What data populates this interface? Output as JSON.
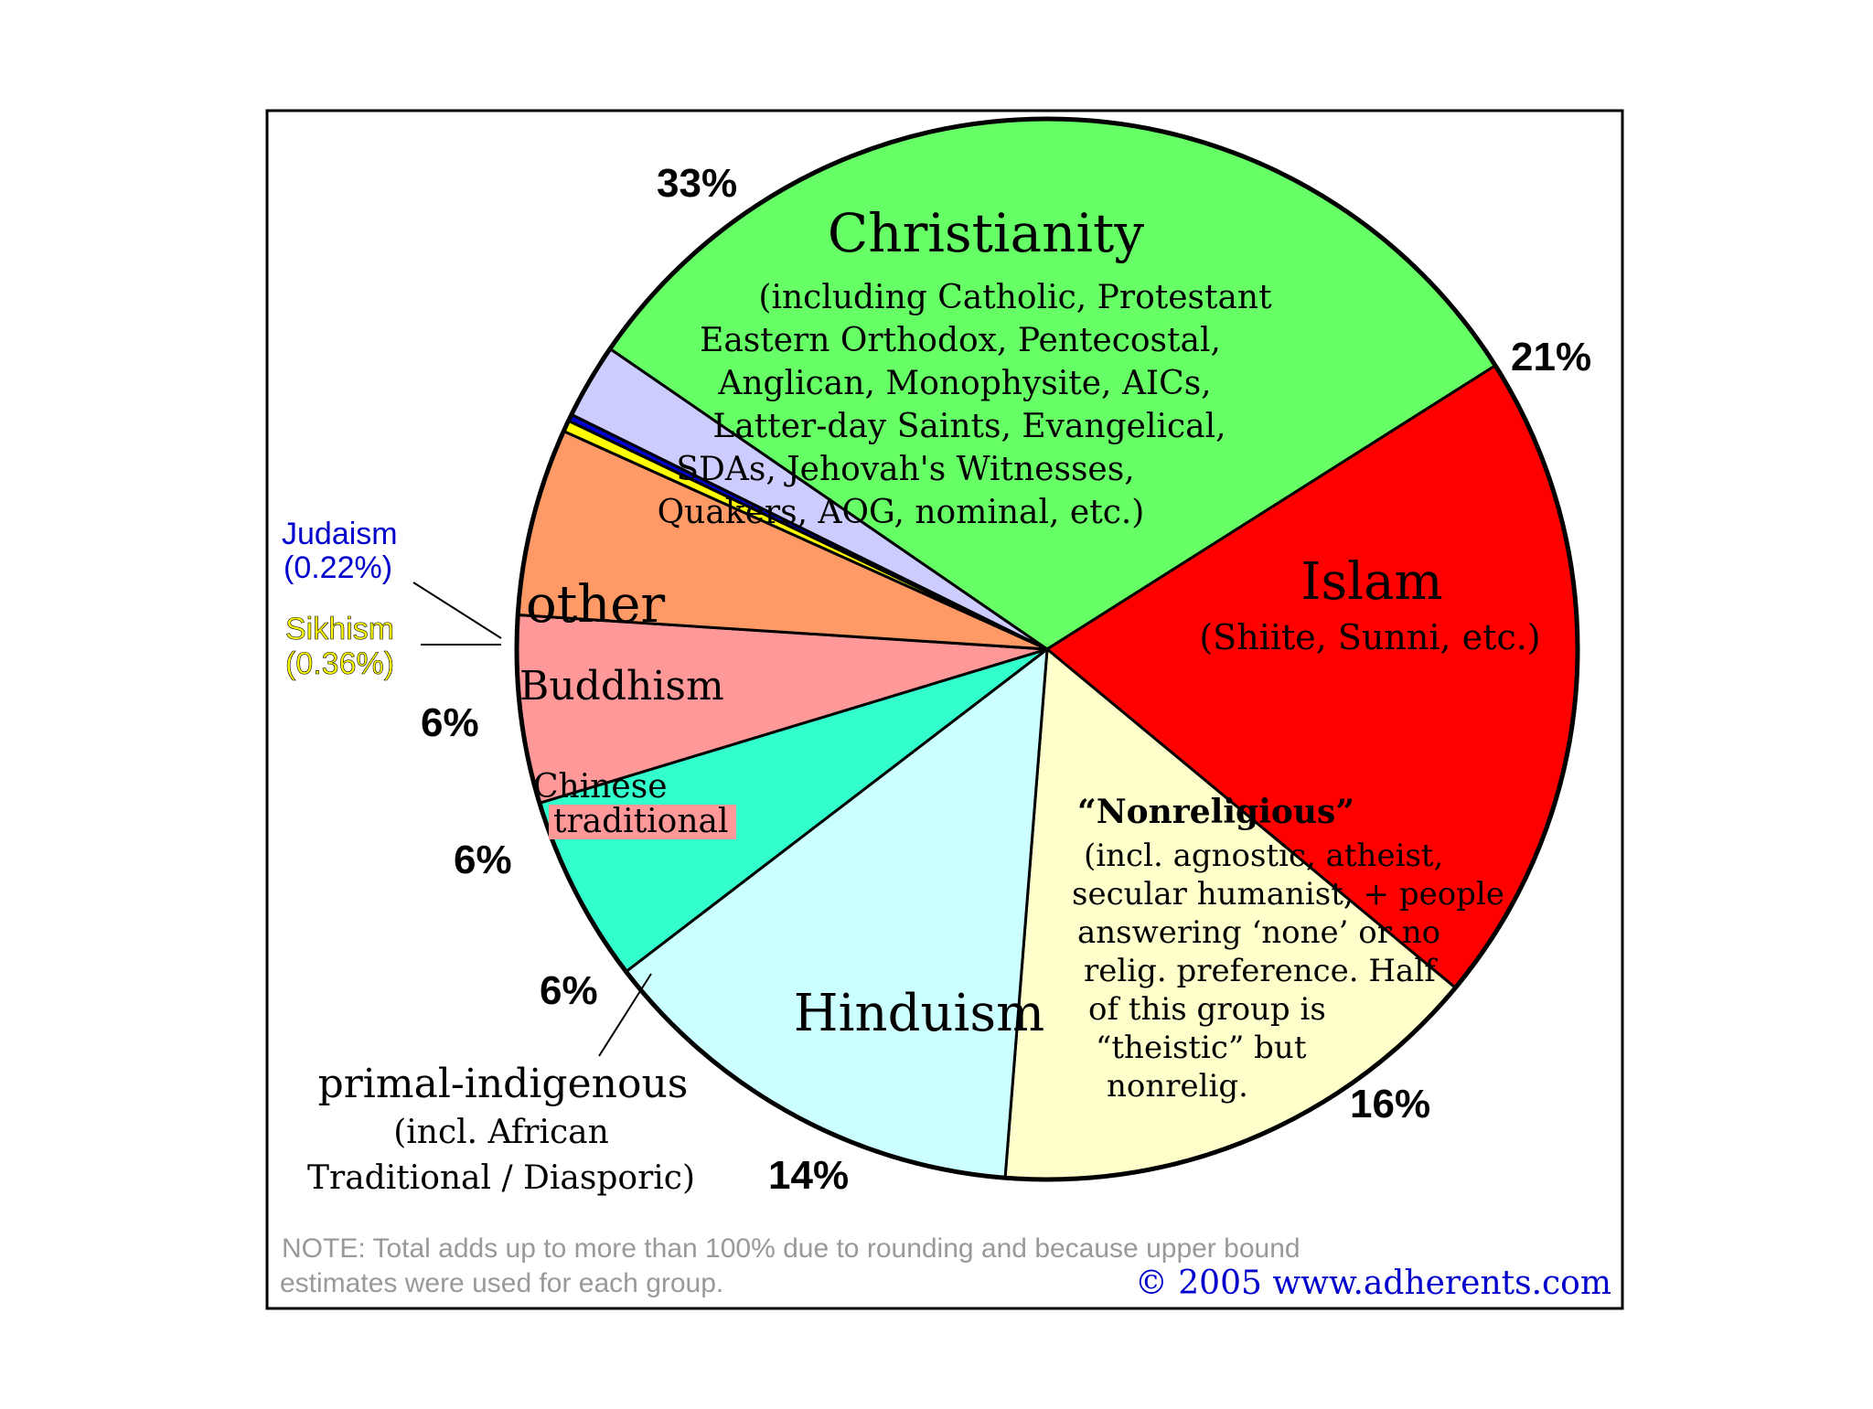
{
  "chart_data": {
    "type": "pie",
    "title": "",
    "slices": [
      {
        "key": "christianity",
        "name": "Christianity",
        "value": 33,
        "value_label": "33%",
        "color": "#66ff66",
        "sublines": [
          "(including Catholic, Protestant",
          "Eastern Orthodox, Pentecostal,",
          "Anglican, Monophysite, AICs,",
          "Latter-day Saints, Evangelical,",
          "SDAs, Jehovah's Witnesses,",
          "Quakers, AOG, nominal, etc.)"
        ]
      },
      {
        "key": "islam",
        "name": "Islam",
        "value": 21,
        "value_label": "21%",
        "color": "#ff0000",
        "sublines": [
          "(Shiite, Sunni, etc.)"
        ]
      },
      {
        "key": "nonreligious",
        "name": "“Nonreligious”",
        "value": 16,
        "value_label": "16%",
        "color": "#ffffcc",
        "sublines": [
          "(incl. agnostic, atheist,",
          "secular humanist, + people",
          "answering ‘none’ or no",
          "relig. preference. Half",
          "of this group is",
          "“theistic” but",
          "nonrelig."
        ]
      },
      {
        "key": "hinduism",
        "name": "Hinduism",
        "value": 14,
        "value_label": "14%",
        "color": "#ccffff",
        "sublines": []
      },
      {
        "key": "primal",
        "name": "primal-indigenous",
        "value": 6,
        "value_label": "6%",
        "color": "#33ffcc",
        "sublines": [
          "(incl. African",
          "Traditional / Diasporic)"
        ]
      },
      {
        "key": "chinese",
        "name": "Chinese traditional",
        "value": 6,
        "value_label": "6%",
        "color": "#ff9999",
        "sublines": []
      },
      {
        "key": "buddhism",
        "name": "Buddhism",
        "value": 6,
        "value_label": "6%",
        "color": "#ff9966",
        "sublines": []
      },
      {
        "key": "sikhism",
        "name": "Sikhism",
        "value": 0.36,
        "value_label": "(0.36%)",
        "color": "#ffff00",
        "sublines": []
      },
      {
        "key": "judaism",
        "name": "Judaism",
        "value": 0.22,
        "value_label": "(0.22%)",
        "color": "#0000cc",
        "sublines": []
      },
      {
        "key": "other",
        "name": "other",
        "value": 2.4,
        "value_label": "",
        "color": "#ccccff",
        "sublines": []
      }
    ],
    "note": "NOTE: Total adds up to more than 100% due to rounding and because upper bound estimates were used for each group.",
    "credit": "© 2005  www.adherents.com"
  },
  "colors": {
    "judaism_label": "#0000cc",
    "sikhism_label": "#ffff00",
    "note_text": "#999999",
    "credit_text": "#0000cc",
    "outline": "#000000"
  }
}
